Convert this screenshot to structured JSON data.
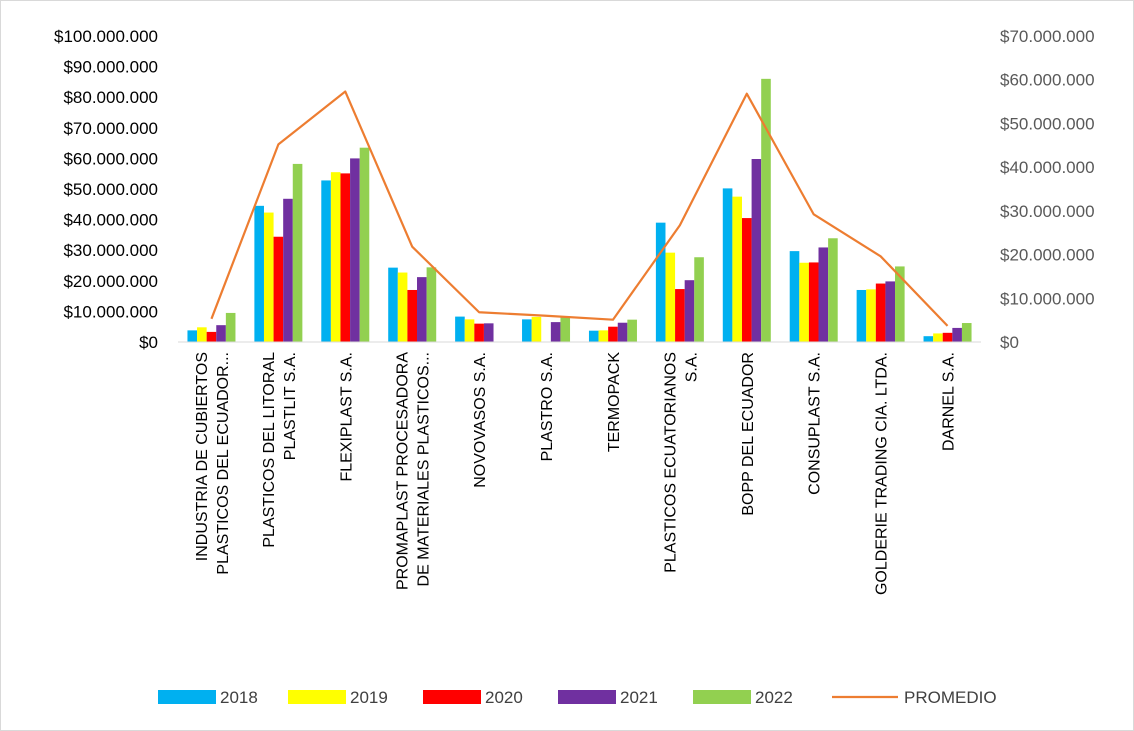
{
  "chart_data": {
    "type": "bar",
    "title": "",
    "xlabel": "",
    "ylabel": "",
    "categories": [
      [
        "INDUSTRIA DE CUBIERTOS",
        "PLASTICOS DEL ECUADOR..."
      ],
      [
        "PLASTICOS DEL LITORAL",
        "PLASTLIT S.A."
      ],
      [
        "FLEXIPLAST S.A."
      ],
      [
        "PROMAPLAST PROCESADORA",
        "DE MATERIALES PLASTICOS..."
      ],
      [
        "NOVOVASOS S.A."
      ],
      [
        "PLASTRO S.A."
      ],
      [
        "TERMOPACK"
      ],
      [
        "PLASTICOS ECUATORIANOS",
        "S.A."
      ],
      [
        "BOPP DEL ECUADOR"
      ],
      [
        "CONSUPLAST S.A."
      ],
      [
        "GOLDERIE TRADING CIA. LTDA."
      ],
      [
        "DARNEL S.A."
      ]
    ],
    "ylim": [
      0,
      100000000
    ],
    "y2lim": [
      0,
      70000000
    ],
    "y_ticks": [
      "$0",
      "$10.000.000",
      "$20.000.000",
      "$30.000.000",
      "$40.000.000",
      "$50.000.000",
      "$60.000.000",
      "$70.000.000",
      "$80.000.000",
      "$90.000.000",
      "$100.000.000"
    ],
    "y2_ticks": [
      "$0",
      "$10.000.000",
      "$20.000.000",
      "$30.000.000",
      "$40.000.000",
      "$50.000.000",
      "$60.000.000",
      "$70.000.000"
    ],
    "series": [
      {
        "name": "2018",
        "color": "#00B0F0",
        "axis": "left",
        "values": [
          3800000,
          44500000,
          52800000,
          24300000,
          8300000,
          7400000,
          3700000,
          39000000,
          50200000,
          29700000,
          17000000,
          1900000
        ]
      },
      {
        "name": "2019",
        "color": "#FFFF00",
        "axis": "left",
        "values": [
          4800000,
          42300000,
          55500000,
          22700000,
          7400000,
          8200000,
          3800000,
          29200000,
          47500000,
          25900000,
          17200000,
          2800000
        ]
      },
      {
        "name": "2020",
        "color": "#FF0000",
        "axis": "left",
        "values": [
          3300000,
          34400000,
          55100000,
          17000000,
          6000000,
          0,
          5000000,
          17300000,
          40500000,
          26000000,
          19100000,
          3000000
        ]
      },
      {
        "name": "2021",
        "color": "#7030A0",
        "axis": "left",
        "values": [
          5500000,
          46800000,
          60000000,
          21200000,
          6100000,
          6500000,
          6300000,
          20200000,
          59800000,
          30900000,
          19800000,
          4600000
        ]
      },
      {
        "name": "2022",
        "color": "#92D050",
        "axis": "left",
        "values": [
          9500000,
          58200000,
          63500000,
          24400000,
          0,
          8300000,
          7300000,
          27700000,
          86000000,
          33900000,
          24700000,
          6200000
        ]
      },
      {
        "name": "PROMEDIO",
        "color": "#ED7D31",
        "type": "line",
        "axis": "right",
        "values": [
          5300000,
          45200000,
          57300000,
          21800000,
          6800000,
          6000000,
          5100000,
          26700000,
          56800000,
          29200000,
          19600000,
          3700000
        ]
      }
    ],
    "legend_position": "bottom",
    "grid": false
  }
}
